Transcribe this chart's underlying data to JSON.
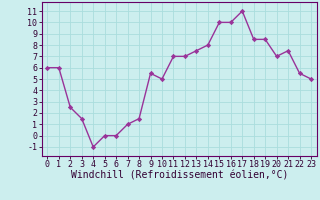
{
  "x": [
    0,
    1,
    2,
    3,
    4,
    5,
    6,
    7,
    8,
    9,
    10,
    11,
    12,
    13,
    14,
    15,
    16,
    17,
    18,
    19,
    20,
    21,
    22,
    23
  ],
  "y": [
    6.0,
    6.0,
    2.5,
    1.5,
    -1.0,
    0.0,
    0.0,
    1.0,
    1.5,
    5.5,
    5.0,
    7.0,
    7.0,
    7.5,
    8.0,
    10.0,
    10.0,
    11.0,
    8.5,
    8.5,
    7.0,
    7.5,
    5.5,
    5.0
  ],
  "line_color": "#993399",
  "marker": "D",
  "markersize": 2.2,
  "linewidth": 1.0,
  "xlabel": "Windchill (Refroidissement éolien,°C)",
  "xlabel_fontsize": 7,
  "bg_color": "#cceeee",
  "grid_color": "#aadddd",
  "tick_color": "#330033",
  "xlim": [
    -0.5,
    23.5
  ],
  "ylim": [
    -1.8,
    11.8
  ],
  "yticks": [
    -1,
    0,
    1,
    2,
    3,
    4,
    5,
    6,
    7,
    8,
    9,
    10,
    11
  ],
  "xticks": [
    0,
    1,
    2,
    3,
    4,
    5,
    6,
    7,
    8,
    9,
    10,
    11,
    12,
    13,
    14,
    15,
    16,
    17,
    18,
    19,
    20,
    21,
    22,
    23
  ],
  "tick_fontsize": 6,
  "spine_color": "#660066"
}
